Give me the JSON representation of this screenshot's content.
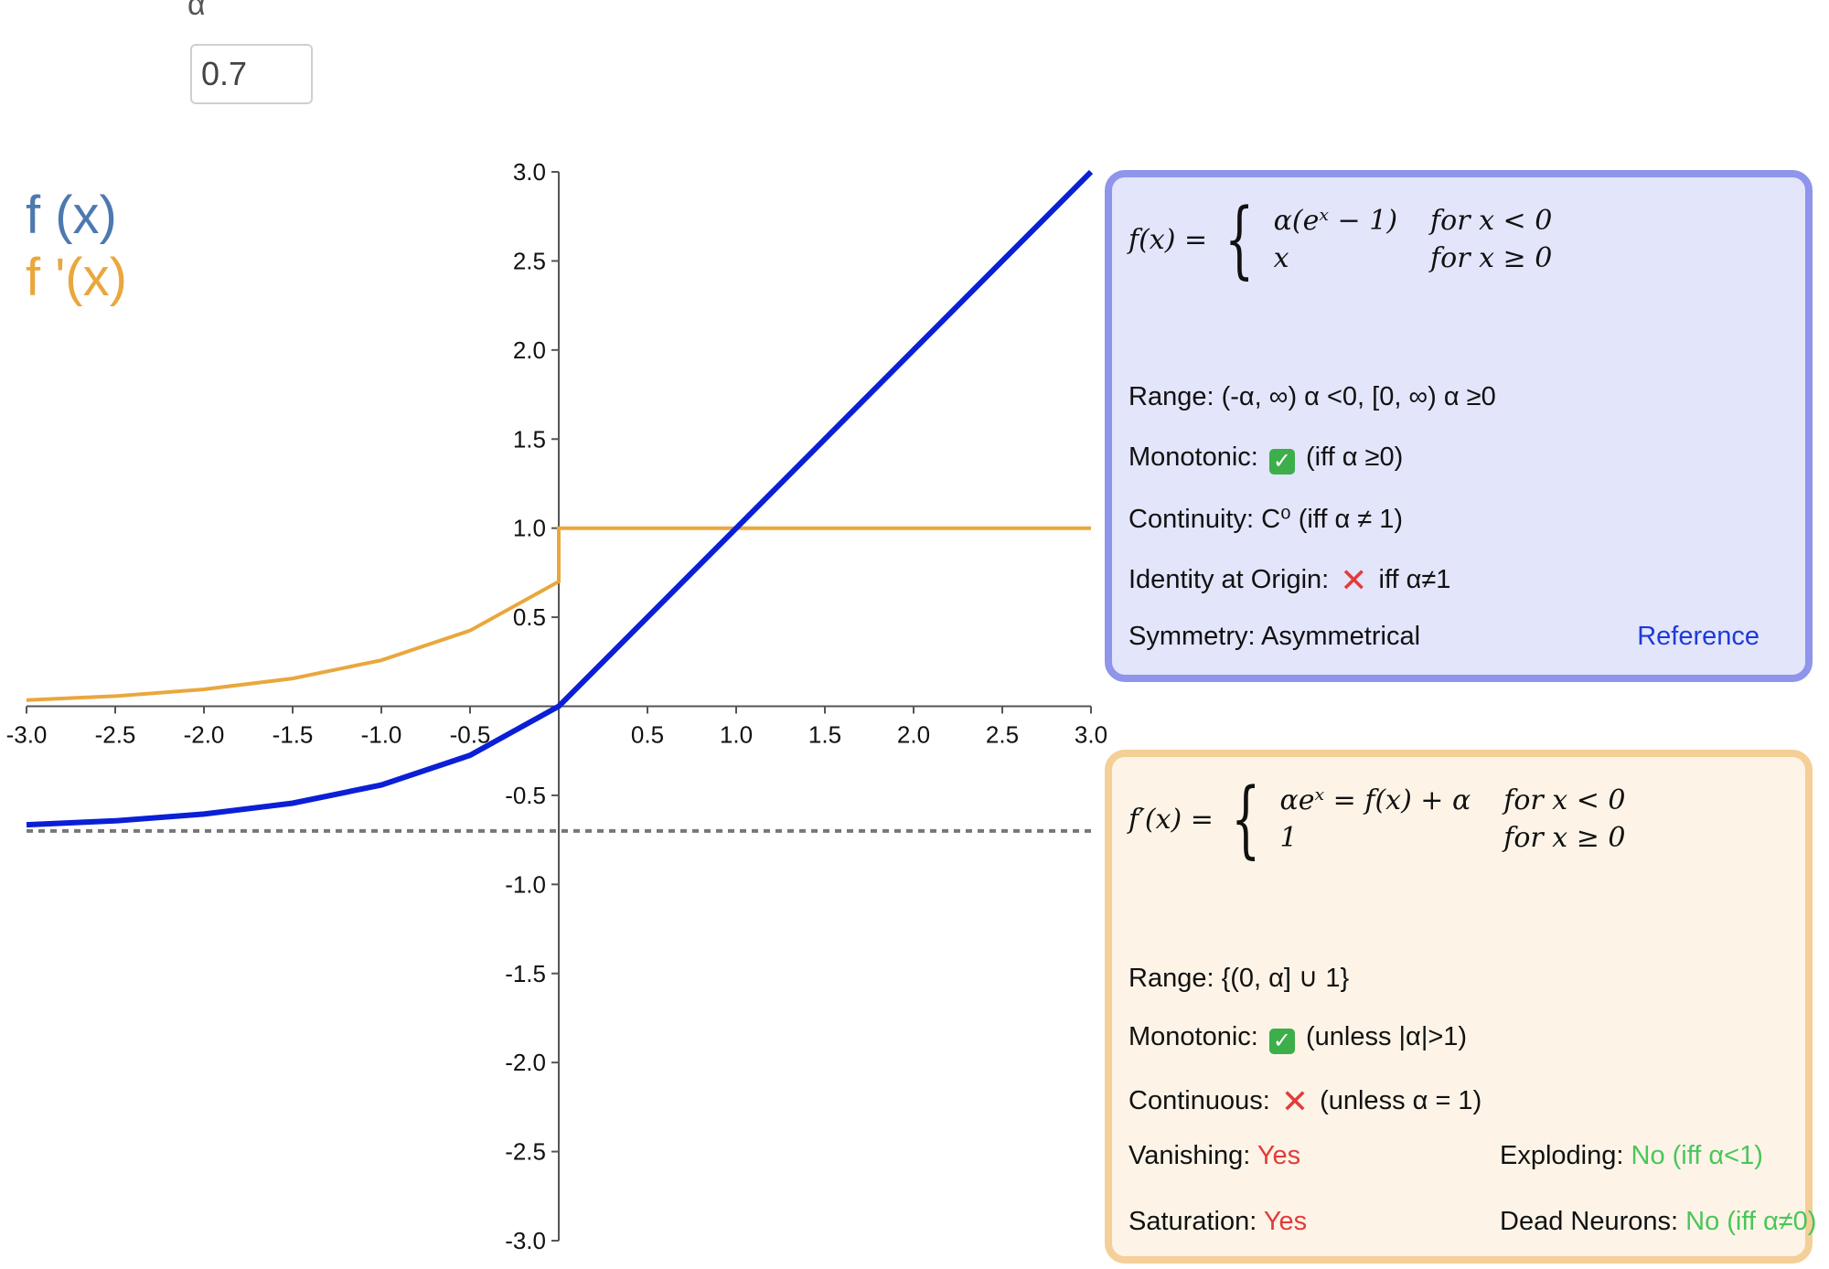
{
  "control": {
    "label": "α",
    "value": "0.7"
  },
  "legend": {
    "f": "f (x)",
    "fp": "f '(x)"
  },
  "colors": {
    "f": "#0a1fd6",
    "fp": "#e9a73c",
    "asymptote": "#777777",
    "axis": "#555555"
  },
  "chart_data": {
    "type": "line",
    "xlim": [
      -3.0,
      3.0
    ],
    "ylim": [
      -3.0,
      3.0
    ],
    "x_ticks": [
      "-3.0",
      "-2.5",
      "-2.0",
      "-1.5",
      "-1.0",
      "-0.5",
      "0.5",
      "1.0",
      "1.5",
      "2.0",
      "2.5",
      "3.0"
    ],
    "y_ticks": [
      "3.0",
      "2.5",
      "2.0",
      "1.5",
      "1.0",
      "0.5",
      "-0.5",
      "-1.0",
      "-1.5",
      "-2.0",
      "-2.5",
      "-3.0"
    ],
    "series": [
      {
        "x": [
          -3.0,
          -2.5,
          -2.0,
          -1.5,
          -1.0,
          -0.5,
          0.0,
          0.5,
          1.0,
          1.5,
          2.0,
          2.5,
          3.0
        ],
        "y": [
          -0.665,
          -0.643,
          -0.605,
          -0.544,
          -0.442,
          -0.275,
          0.0,
          0.5,
          1.0,
          1.5,
          2.0,
          2.5,
          3.0
        ]
      },
      {
        "x": [
          -3.0,
          -2.5,
          -2.0,
          -1.5,
          -1.0,
          -0.5,
          0.0,
          0.0,
          0.5,
          1.0,
          1.5,
          2.0,
          2.5,
          3.0
        ],
        "y": [
          0.035,
          0.057,
          0.095,
          0.156,
          0.258,
          0.425,
          0.7,
          1.0,
          1.0,
          1.0,
          1.0,
          1.0,
          1.0,
          1.0
        ]
      },
      {
        "x": [
          -3.0,
          3.0
        ],
        "y": [
          -0.7,
          -0.7
        ]
      }
    ]
  },
  "panel_f": {
    "formula_lhs": "f(x) =",
    "case1_expr": "α(eˣ − 1)",
    "case1_cond": "for x < 0",
    "case2_expr": "x",
    "case2_cond": "for x ≥ 0",
    "range": "Range: (-α, ∞) α <0, [0, ∞) α ≥0",
    "monotonic_label": "Monotonic:",
    "monotonic_note": "(iff α ≥0)",
    "continuity": "Continuity: C⁰ (iff α ≠ 1)",
    "identity_label": "Identity at Origin:",
    "identity_note": "iff α≠1",
    "symmetry": "Symmetry: Asymmetrical",
    "reference": "Reference"
  },
  "panel_fp": {
    "formula_lhs": "f′(x) =",
    "case1_expr": "αeˣ = f(x) + α",
    "case1_cond": "for x < 0",
    "case2_expr": "1",
    "case2_cond": "for x ≥ 0",
    "range": "Range: {(0, α] ∪ 1}",
    "monotonic_label": "Monotonic:",
    "monotonic_note": "(unless |α|>1)",
    "continuous_label": "Continuous:",
    "continuous_note": "(unless α = 1)",
    "vanishing_label": "Vanishing:",
    "vanishing_value": "Yes",
    "exploding_label": "Exploding:",
    "exploding_value": "No (iff α<1)",
    "saturation_label": "Saturation:",
    "saturation_value": "Yes",
    "dead_label": "Dead Neurons:",
    "dead_value": "No (iff α≠0)"
  }
}
